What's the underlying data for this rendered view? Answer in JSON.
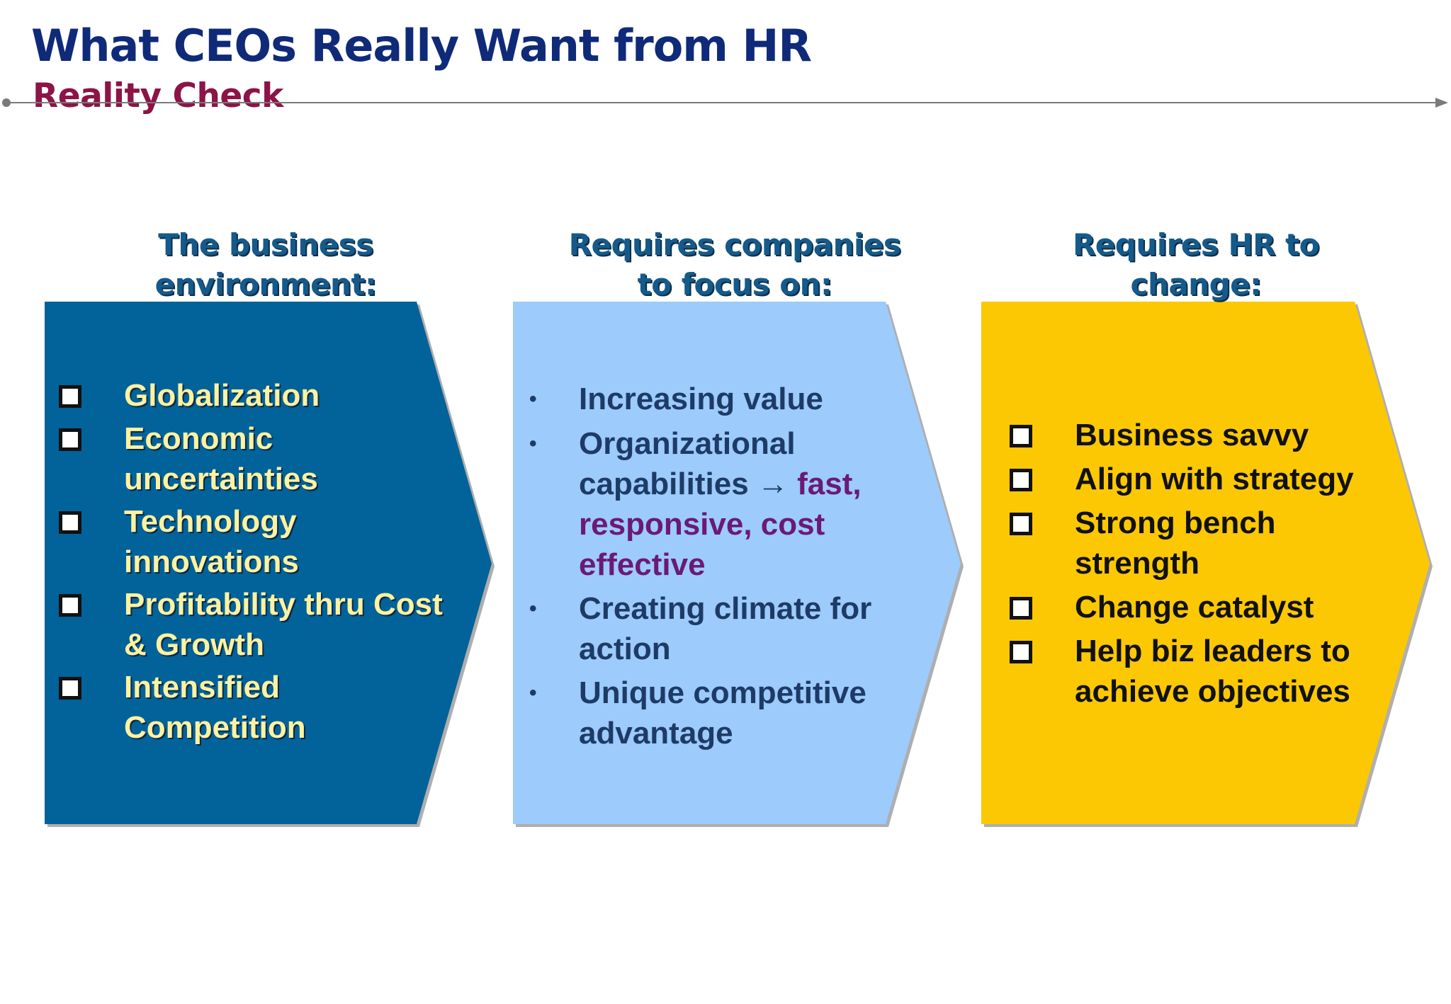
{
  "title": "What CEOs Really Want from HR",
  "subtitle": "Reality Check",
  "colors": {
    "title": "#0f2a78",
    "subtitle": "#8c1446",
    "arrow_1": "#02629a",
    "arrow_2": "#9ccbfc",
    "arrow_3": "#fcc804",
    "heading": "#155a8a",
    "list_1_text": "#fbf2a2",
    "list_2_text": "#1d3b66",
    "list_2_accent": "#6b1a73",
    "list_3_text": "#111111"
  },
  "columns": [
    {
      "heading": "The business environment:",
      "items": [
        "Globalization",
        "Economic uncertainties",
        "Technology innovations",
        "Profitability thru Cost & Growth",
        "Intensified Competition"
      ]
    },
    {
      "heading": "Requires companies to focus on:",
      "items": [
        {
          "text": "Increasing value",
          "accent": ""
        },
        {
          "text": "Organizational capabilities →",
          "accent": "fast, responsive, cost effective"
        },
        {
          "text": "Creating climate for action",
          "accent": ""
        },
        {
          "text": "Unique competitive advantage",
          "accent": ""
        }
      ]
    },
    {
      "heading": "Requires HR to change:",
      "items": [
        "Business savvy",
        "Align with strategy",
        "Strong bench strength",
        "Change catalyst",
        "Help biz leaders to achieve objectives"
      ]
    }
  ]
}
